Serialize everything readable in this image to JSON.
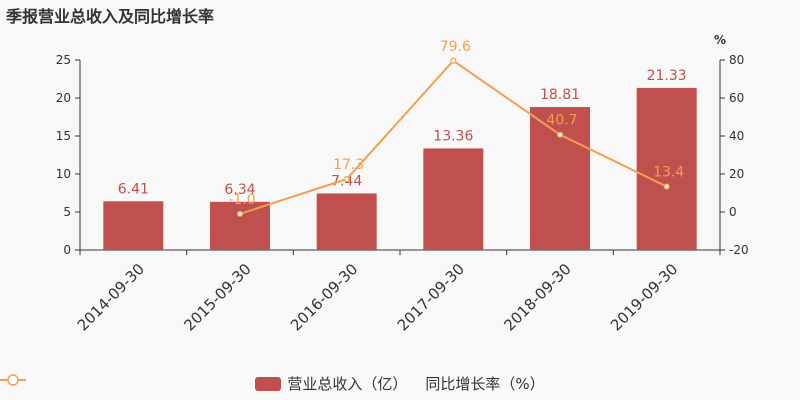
{
  "title": "季报营业总收入及同比增长率",
  "colors": {
    "bar": "#c0504d",
    "line": "#f0a050",
    "bar_label": "#c0504d",
    "line_label": "#f0a050",
    "axis": "#333333",
    "grid": "#dddddd"
  },
  "legend": {
    "bar_label": "营业总收入（亿）",
    "line_label": "同比增长率（%）"
  },
  "chart_data": {
    "type": "bar",
    "categories": [
      "2014-09-30",
      "2015-09-30",
      "2016-09-30",
      "2017-09-30",
      "2018-09-30",
      "2019-09-30"
    ],
    "series": [
      {
        "name": "营业总收入（亿）",
        "type": "bar",
        "axis": "left",
        "values": [
          6.41,
          6.34,
          7.44,
          13.36,
          18.81,
          21.33
        ],
        "labels": [
          "6.41",
          "6.34",
          "7.44",
          "13.36",
          "18.81",
          "21.33"
        ]
      },
      {
        "name": "同比增长率（%）",
        "type": "line",
        "axis": "right",
        "values": [
          null,
          -1.0,
          17.3,
          79.6,
          40.7,
          13.4
        ],
        "labels": [
          "",
          "-1.0",
          "17.3",
          "79.6",
          "40.7",
          "13.4"
        ]
      }
    ],
    "y_left": {
      "ylim": [
        0,
        25
      ],
      "ticks": [
        0,
        5,
        10,
        15,
        20,
        25
      ]
    },
    "y_right": {
      "ylim": [
        -20,
        80
      ],
      "ticks": [
        -20,
        0,
        20,
        40,
        60,
        80
      ],
      "unit_label": "%"
    },
    "grid": false,
    "legend_position": "bottom"
  }
}
